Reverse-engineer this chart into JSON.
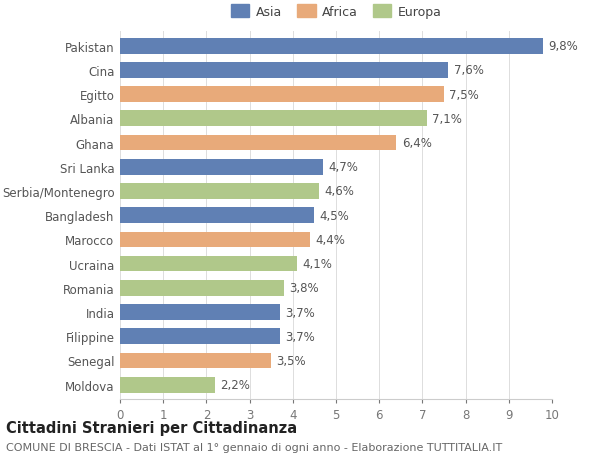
{
  "categories": [
    "Pakistan",
    "Cina",
    "Egitto",
    "Albania",
    "Ghana",
    "Sri Lanka",
    "Serbia/Montenegro",
    "Bangladesh",
    "Marocco",
    "Ucraina",
    "Romania",
    "India",
    "Filippine",
    "Senegal",
    "Moldova"
  ],
  "values": [
    9.8,
    7.6,
    7.5,
    7.1,
    6.4,
    4.7,
    4.6,
    4.5,
    4.4,
    4.1,
    3.8,
    3.7,
    3.7,
    3.5,
    2.2
  ],
  "continents": [
    "Asia",
    "Asia",
    "Africa",
    "Europa",
    "Africa",
    "Asia",
    "Europa",
    "Asia",
    "Africa",
    "Europa",
    "Europa",
    "Asia",
    "Asia",
    "Africa",
    "Europa"
  ],
  "colors": {
    "Asia": "#6080b4",
    "Africa": "#e8aa7a",
    "Europa": "#b0c88a"
  },
  "legend_labels": [
    "Asia",
    "Africa",
    "Europa"
  ],
  "xlim": [
    0,
    10
  ],
  "xticks": [
    0,
    1,
    2,
    3,
    4,
    5,
    6,
    7,
    8,
    9,
    10
  ],
  "title": "Cittadini Stranieri per Cittadinanza",
  "subtitle": "COMUNE DI BRESCIA - Dati ISTAT al 1° gennaio di ogni anno - Elaborazione TUTTITALIA.IT",
  "bg_color": "#ffffff",
  "bar_height": 0.65,
  "label_fontsize": 8.5,
  "value_fontsize": 8.5,
  "title_fontsize": 10.5,
  "subtitle_fontsize": 8.0,
  "legend_fontsize": 9.0
}
